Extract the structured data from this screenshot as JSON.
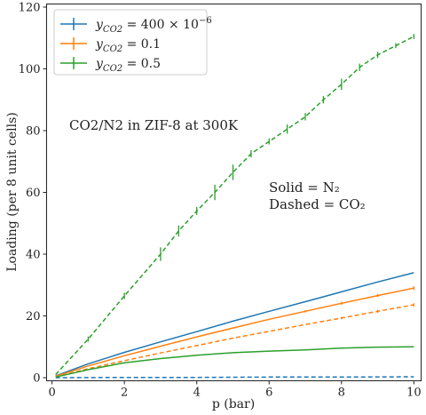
{
  "chart_data": {
    "type": "line",
    "xlabel": "p (bar)",
    "ylabel": "Loading (per 8 unit cells)",
    "xlim": [
      -0.15,
      10.2
    ],
    "ylim": [
      -1,
      121
    ],
    "xticks": [
      0,
      2,
      4,
      6,
      8,
      10
    ],
    "yticks": [
      0,
      20,
      40,
      60,
      80,
      100,
      120
    ],
    "grid": false,
    "legend_position": "top-left",
    "annotations": {
      "title_text": "CO2/N2 in ZIF-8 at 300K",
      "solid_text": "Solid = N₂",
      "dashed_text": "Dashed = CO₂"
    },
    "colors": {
      "blue": "#1f77b4",
      "orange": "#ff7f0e",
      "green": "#2ca02c"
    },
    "series": [
      {
        "name": "y_CO2 = 400 × 10⁻⁶",
        "legend_main": "y",
        "legend_sub": "CO2",
        "legend_rest": " = 400 × 10",
        "legend_sup": "−6",
        "color": "#1f77b4",
        "n2": {
          "x": [
            0.1,
            1,
            2,
            3,
            4,
            5,
            6,
            7,
            8,
            9,
            10
          ],
          "y": [
            0.6,
            4.5,
            8.2,
            11.6,
            14.9,
            18.3,
            21.5,
            24.6,
            27.8,
            31.0,
            34.0
          ],
          "err": [
            0,
            0,
            0,
            0,
            0,
            0,
            0,
            0,
            0,
            0,
            0
          ]
        },
        "co2": {
          "x": [
            0.1,
            2,
            4,
            6,
            8,
            10
          ],
          "y": [
            0.0,
            0.1,
            0.1,
            0.2,
            0.2,
            0.3
          ],
          "err": [
            0,
            0,
            0,
            0,
            0,
            0
          ]
        }
      },
      {
        "name": "y_CO2 = 0.1",
        "legend_main": "y",
        "legend_sub": "CO2",
        "legend_rest": " = 0.1",
        "legend_sup": "",
        "color": "#ff7f0e",
        "n2": {
          "x": [
            0.1,
            1,
            2,
            3,
            4,
            5,
            6,
            7,
            8,
            9,
            10
          ],
          "y": [
            0.5,
            3.8,
            7.1,
            10.2,
            13.2,
            16.1,
            18.9,
            21.5,
            24.1,
            26.6,
            29.0
          ],
          "err": [
            0,
            0,
            0,
            0,
            0,
            0,
            0,
            0.4,
            0.5,
            0.5,
            0.6
          ]
        },
        "co2": {
          "x": [
            0.1,
            1,
            2,
            3,
            4,
            5,
            6,
            7,
            8,
            9,
            10
          ],
          "y": [
            0.3,
            2.9,
            5.5,
            8.0,
            10.4,
            12.8,
            15.0,
            17.2,
            19.3,
            21.5,
            23.6
          ],
          "err": [
            0,
            0,
            0,
            0,
            0,
            0,
            0,
            0,
            0.4,
            0.5,
            0.5
          ]
        }
      },
      {
        "name": "y_CO2 = 0.5",
        "legend_main": "y",
        "legend_sub": "CO2",
        "legend_rest": " = 0.5",
        "legend_sup": "",
        "color": "#2ca02c",
        "n2": {
          "x": [
            0.1,
            1,
            2,
            3,
            4,
            5,
            6,
            7,
            8,
            9,
            10
          ],
          "y": [
            0.2,
            2.6,
            4.8,
            6.2,
            7.3,
            8.1,
            8.6,
            9.0,
            9.6,
            9.9,
            10.0
          ],
          "err": [
            0,
            0,
            0,
            0,
            0,
            0,
            0,
            0,
            0,
            0,
            0
          ]
        },
        "co2": {
          "x": [
            0.1,
            1,
            2,
            3,
            3.5,
            4,
            4.5,
            5,
            5.5,
            6,
            6.5,
            7,
            7.5,
            8,
            8.5,
            9,
            9.5,
            10
          ],
          "y": [
            1.0,
            12.5,
            26.5,
            40.0,
            47.5,
            54.0,
            60.0,
            66.5,
            72.5,
            76.5,
            80.5,
            84.5,
            90.0,
            95.0,
            100.5,
            104.5,
            107.5,
            110.5
          ],
          "err": [
            0,
            0.8,
            1.0,
            2.2,
            1.8,
            1.3,
            2.5,
            2.5,
            1.2,
            1.0,
            1.5,
            1.2,
            1.2,
            1.8,
            1.2,
            1.0,
            0.8,
            0.8
          ]
        }
      }
    ]
  }
}
